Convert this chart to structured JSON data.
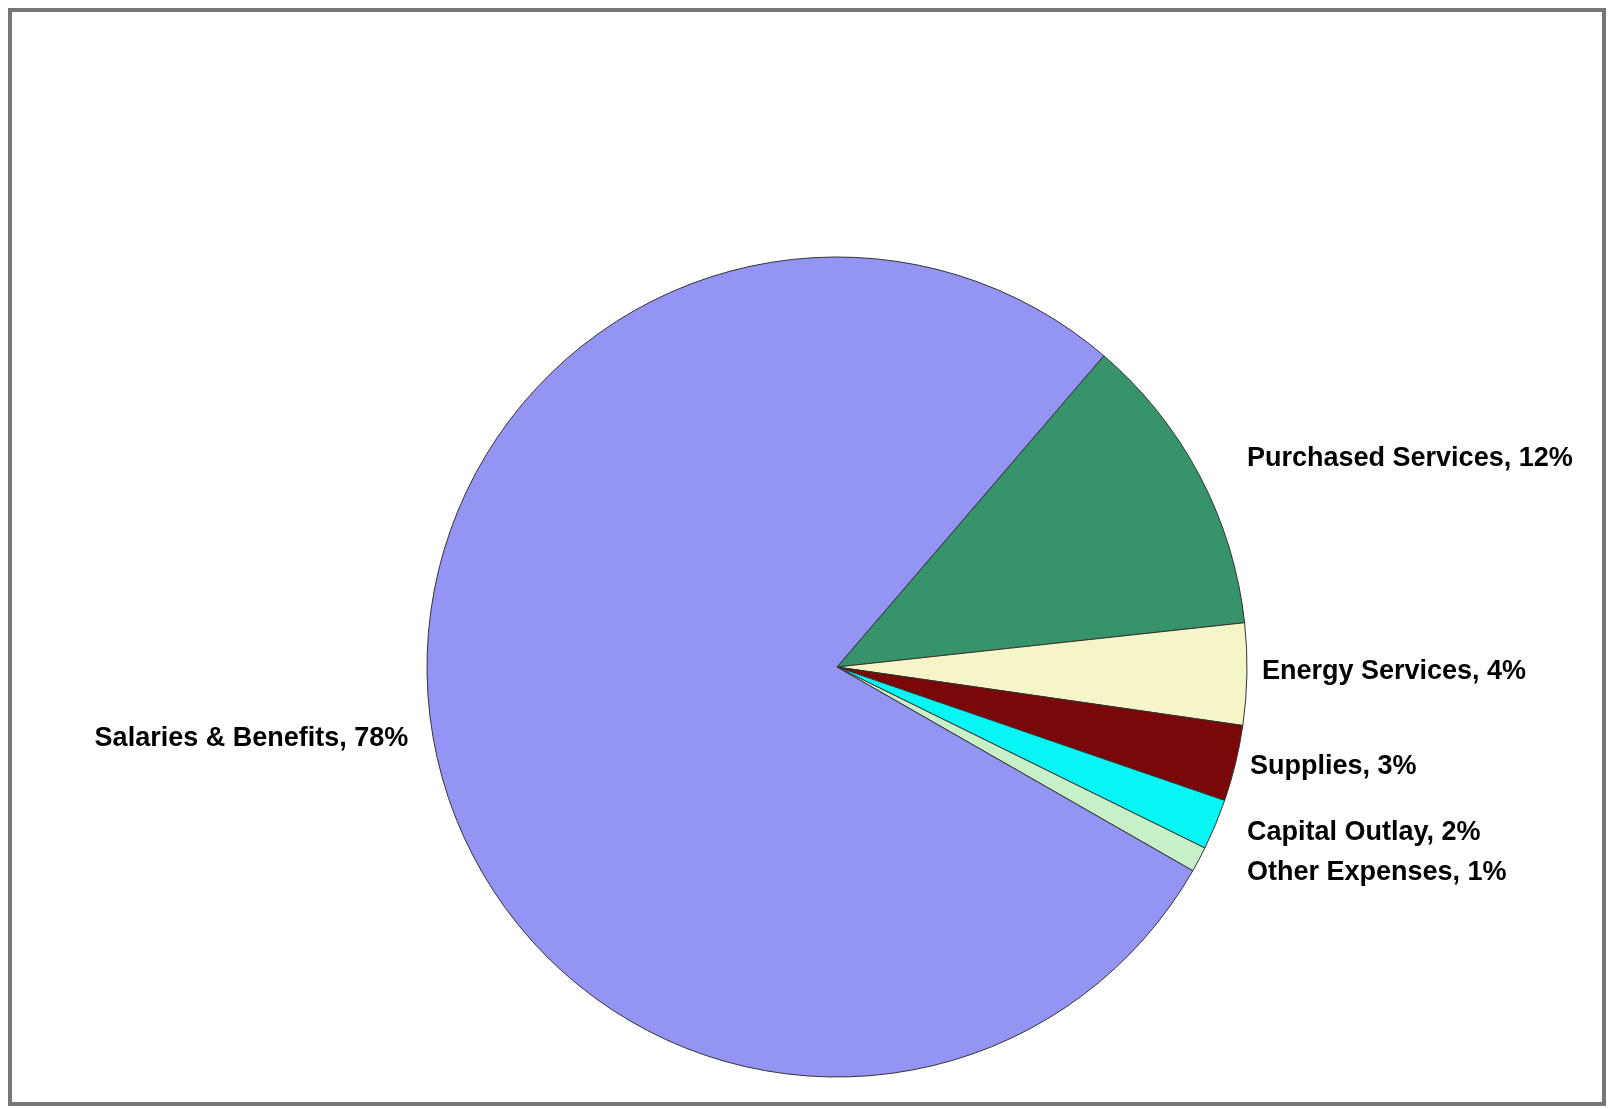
{
  "chart_data": {
    "type": "pie",
    "categories": [
      "Purchased Services",
      "Energy Services",
      "Supplies",
      "Capital Outlay",
      "Other Expenses",
      "Salaries & Benefits"
    ],
    "value_labels": [
      "12%",
      "4%",
      "3%",
      "2%",
      "1%",
      "78%"
    ],
    "values": [
      12,
      4,
      3,
      2,
      1,
      78
    ],
    "colors": [
      "#36936a",
      "#f5f5c8",
      "#7a0808",
      "#08f5f5",
      "#c8f0c8",
      "#9494f5"
    ]
  }
}
